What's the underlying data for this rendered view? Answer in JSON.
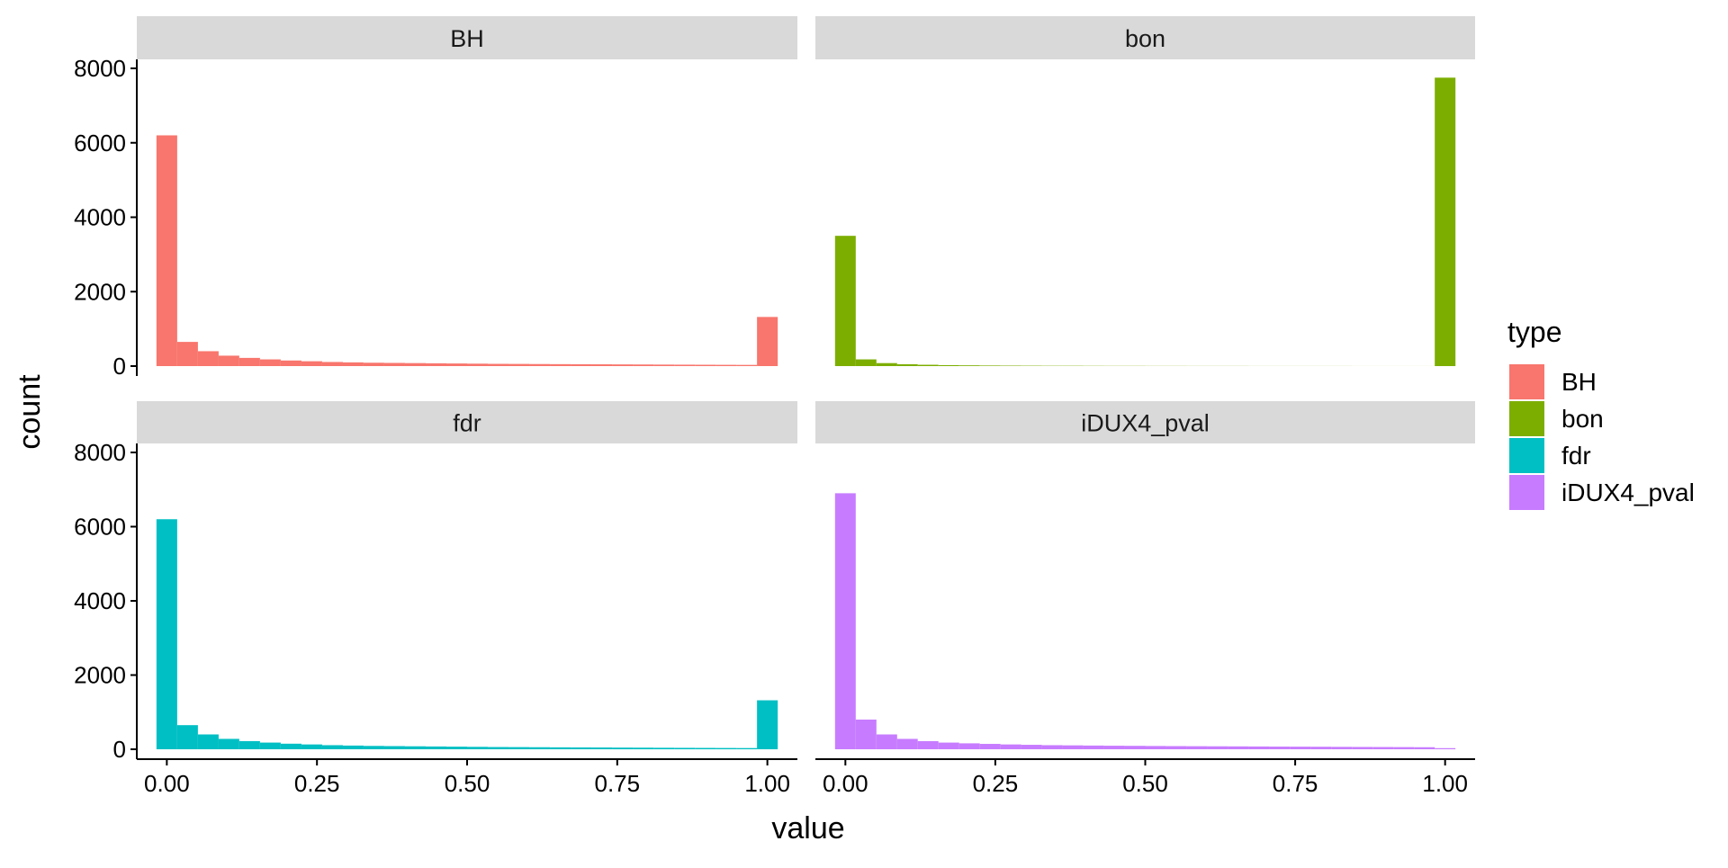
{
  "chart_data": {
    "type": "bar",
    "subtype": "faceted-histogram",
    "xlabel": "value",
    "ylabel": "count",
    "xlim": [
      -0.05,
      1.05
    ],
    "ylim": [
      0,
      8000
    ],
    "x_ticks": [
      "0.00",
      "0.25",
      "0.50",
      "0.75",
      "1.00"
    ],
    "y_ticks": [
      "0",
      "2000",
      "4000",
      "6000",
      "8000"
    ],
    "bin_width": 0.0345,
    "grid": false,
    "legend": {
      "title": "type",
      "position": "right",
      "entries": [
        "BH",
        "bon",
        "fdr",
        "iDUX4_pval"
      ]
    },
    "facets": [
      {
        "label": "BH",
        "color": "#F8766D",
        "bin_centers": [
          0,
          0.0345,
          0.069,
          0.1034,
          0.1379,
          0.1724,
          0.2069,
          0.2414,
          0.2759,
          0.3103,
          0.3448,
          0.3793,
          0.4138,
          0.4483,
          0.4828,
          0.5172,
          0.5517,
          0.5862,
          0.6207,
          0.6552,
          0.6897,
          0.7241,
          0.7586,
          0.7931,
          0.8276,
          0.8621,
          0.8966,
          0.931,
          0.9655,
          1.0
        ],
        "counts": [
          6200,
          650,
          400,
          280,
          220,
          180,
          150,
          130,
          110,
          100,
          90,
          85,
          80,
          75,
          70,
          65,
          60,
          58,
          55,
          52,
          50,
          48,
          45,
          43,
          40,
          38,
          36,
          34,
          32,
          1320
        ]
      },
      {
        "label": "bon",
        "color": "#7CAE00",
        "bin_centers": [
          0,
          0.0345,
          0.069,
          0.1034,
          0.1379,
          0.1724,
          0.2069,
          0.2414,
          0.2759,
          0.3103,
          0.3448,
          0.3793,
          0.4138,
          0.4483,
          0.4828,
          0.5172,
          0.5517,
          0.5862,
          0.6207,
          0.6552,
          0.6897,
          0.7241,
          0.7586,
          0.7931,
          0.8276,
          0.8621,
          0.8966,
          0.931,
          0.9655,
          1.0
        ],
        "counts": [
          3500,
          180,
          80,
          50,
          35,
          25,
          20,
          15,
          12,
          10,
          8,
          8,
          6,
          5,
          5,
          4,
          4,
          3,
          3,
          3,
          2,
          2,
          2,
          2,
          2,
          1,
          1,
          1,
          1,
          7750
        ]
      },
      {
        "label": "fdr",
        "color": "#00BFC4",
        "bin_centers": [
          0,
          0.0345,
          0.069,
          0.1034,
          0.1379,
          0.1724,
          0.2069,
          0.2414,
          0.2759,
          0.3103,
          0.3448,
          0.3793,
          0.4138,
          0.4483,
          0.4828,
          0.5172,
          0.5517,
          0.5862,
          0.6207,
          0.6552,
          0.6897,
          0.7241,
          0.7586,
          0.7931,
          0.8276,
          0.8621,
          0.8966,
          0.931,
          0.9655,
          1.0
        ],
        "counts": [
          6200,
          650,
          400,
          280,
          220,
          180,
          150,
          130,
          110,
          100,
          90,
          85,
          80,
          75,
          70,
          65,
          60,
          58,
          55,
          52,
          50,
          48,
          45,
          43,
          40,
          38,
          36,
          34,
          32,
          1320
        ]
      },
      {
        "label": "iDUX4_pval",
        "color": "#C77CFF",
        "bin_centers": [
          0,
          0.0345,
          0.069,
          0.1034,
          0.1379,
          0.1724,
          0.2069,
          0.2414,
          0.2759,
          0.3103,
          0.3448,
          0.3793,
          0.4138,
          0.4483,
          0.4828,
          0.5172,
          0.5517,
          0.5862,
          0.6207,
          0.6552,
          0.6897,
          0.7241,
          0.7586,
          0.7931,
          0.8276,
          0.8621,
          0.8966,
          0.931,
          0.9655,
          1.0
        ],
        "counts": [
          6900,
          800,
          400,
          280,
          220,
          180,
          160,
          145,
          130,
          120,
          110,
          105,
          100,
          95,
          92,
          88,
          85,
          82,
          80,
          78,
          75,
          72,
          70,
          68,
          65,
          62,
          60,
          58,
          55,
          30
        ]
      }
    ]
  }
}
